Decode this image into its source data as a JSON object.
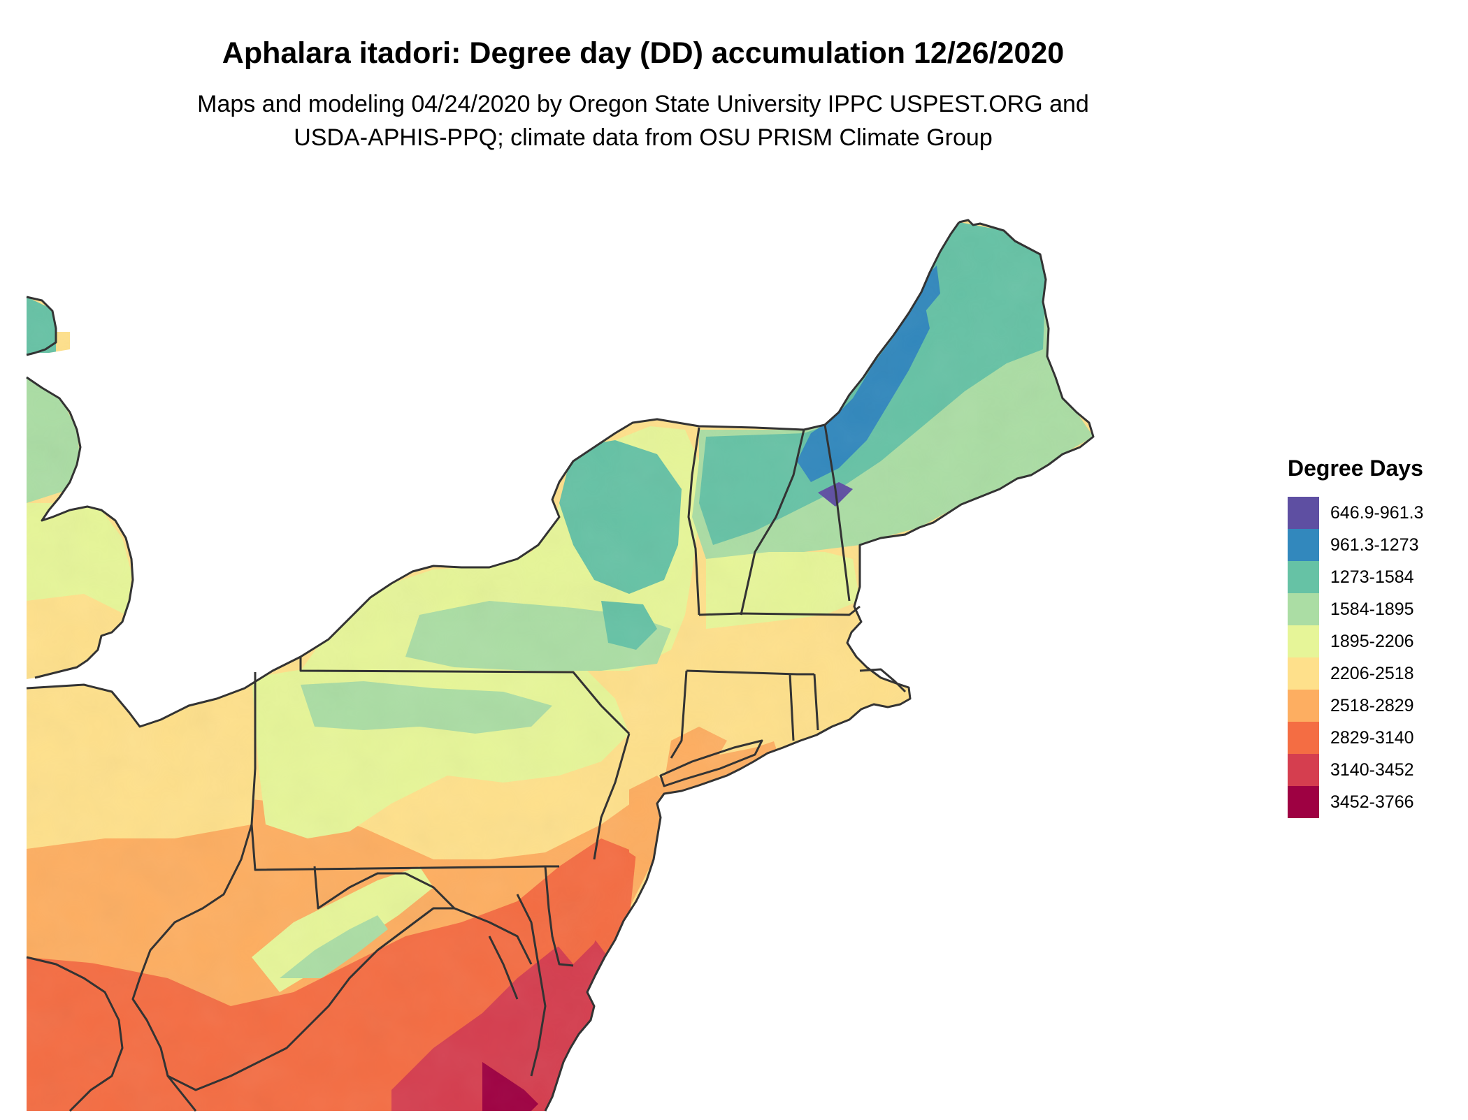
{
  "title": "Aphalara itadori: Degree day (DD) accumulation 12/26/2020",
  "subtitle_line1": "Maps and modeling 04/24/2020 by Oregon State University IPPC USPEST.ORG and",
  "subtitle_line2": "USDA-APHIS-PPQ; climate data from OSU PRISM Climate Group",
  "legend": {
    "title": "Degree Days",
    "items": [
      {
        "label": "646.9-961.3",
        "color": "#5e4fa2"
      },
      {
        "label": "961.3-1273",
        "color": "#3288bd"
      },
      {
        "label": "1273-1584",
        "color": "#66c2a5"
      },
      {
        "label": "1584-1895",
        "color": "#abdda4"
      },
      {
        "label": "1895-2206",
        "color": "#e6f598"
      },
      {
        "label": "2206-2518",
        "color": "#fee08b"
      },
      {
        "label": "2518-2829",
        "color": "#fdae61"
      },
      {
        "label": "2829-3140",
        "color": "#f46d43"
      },
      {
        "label": "3140-3452",
        "color": "#d53e4f"
      },
      {
        "label": "3452-3766",
        "color": "#9e0142"
      }
    ]
  },
  "map": {
    "region": "Northeastern United States",
    "boundary_color": "#333333"
  }
}
